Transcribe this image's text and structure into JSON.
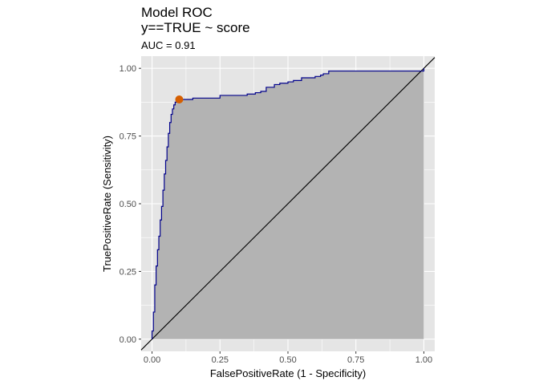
{
  "chart_data": {
    "type": "line",
    "title": "Model ROC",
    "title_line2": "y==TRUE ~ score",
    "subtitle": "AUC = 0.91",
    "xlabel": "FalsePositiveRate (1 - Specificity)",
    "ylabel": "TruePositiveRate (Sensitivity)",
    "xlim": [
      -0.04,
      1.04
    ],
    "ylim": [
      -0.045,
      1.045
    ],
    "x_ticks": [
      "0.00",
      "0.25",
      "0.50",
      "0.75",
      "1.00"
    ],
    "y_ticks": [
      "0.00",
      "0.25",
      "0.50",
      "0.75",
      "1.00"
    ],
    "grid": true,
    "colors": {
      "panel": "#e5e5e5",
      "grid": "#ffffff",
      "area": "#b3b3b3",
      "curve": "#00008b",
      "point": "#d55e00",
      "diagonal": "#000000"
    },
    "roc_curve": {
      "x": [
        0.0,
        0.0,
        0.005,
        0.01,
        0.015,
        0.02,
        0.025,
        0.03,
        0.035,
        0.04,
        0.045,
        0.05,
        0.055,
        0.06,
        0.065,
        0.07,
        0.075,
        0.08,
        0.085,
        0.09,
        0.095,
        0.1,
        0.12,
        0.15,
        0.2,
        0.25,
        0.3,
        0.35,
        0.38,
        0.4,
        0.42,
        0.45,
        0.47,
        0.5,
        0.52,
        0.55,
        0.6,
        0.62,
        0.63,
        0.65,
        0.7,
        0.75,
        0.8,
        0.85,
        0.9,
        0.95,
        0.99,
        1.0
      ],
      "y": [
        0.0,
        0.03,
        0.1,
        0.2,
        0.27,
        0.33,
        0.38,
        0.44,
        0.49,
        0.55,
        0.61,
        0.66,
        0.71,
        0.76,
        0.8,
        0.83,
        0.85,
        0.865,
        0.875,
        0.88,
        0.882,
        0.885,
        0.885,
        0.89,
        0.89,
        0.9,
        0.9,
        0.905,
        0.91,
        0.915,
        0.93,
        0.94,
        0.945,
        0.95,
        0.955,
        0.965,
        0.97,
        0.975,
        0.98,
        0.99,
        0.99,
        0.99,
        0.99,
        0.99,
        0.99,
        0.99,
        0.99,
        1.0
      ]
    },
    "threshold_point": {
      "x": 0.1,
      "y": 0.885
    },
    "diagonal": {
      "x": [
        -0.04,
        1.04
      ],
      "y": [
        -0.04,
        1.04
      ]
    }
  }
}
